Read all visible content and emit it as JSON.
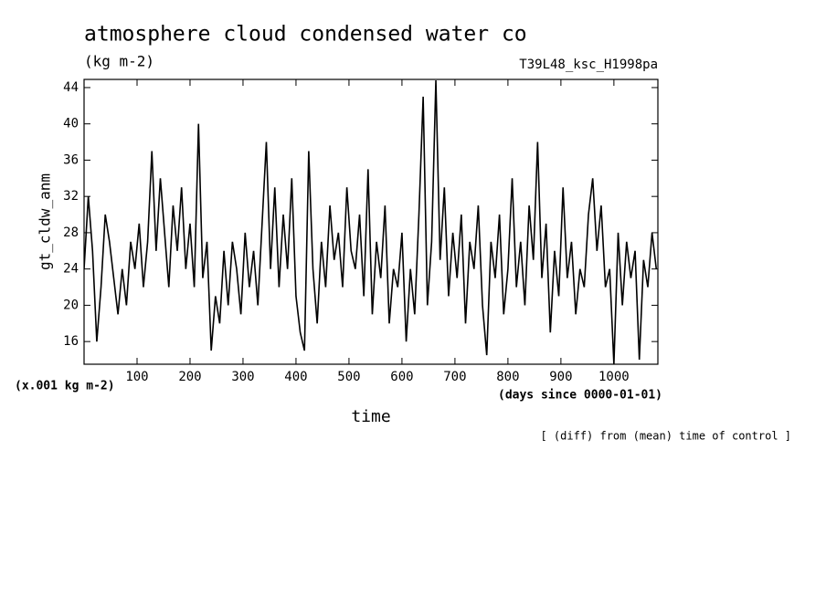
{
  "chart_data": {
    "type": "line",
    "title": "atmosphere cloud condensed water co",
    "subtitle": "(kg m-2)",
    "run_label": "T39L48_ksc_H1998pa",
    "y_label": "gt_cldw_anm",
    "y_unit_label": "(x.001 kg m-2)",
    "x_unit_label": "(days since 0000-01-01)",
    "x_label": "time",
    "note": "[ (diff) from (mean) time of control ]",
    "color": "#000000",
    "xlim": [
      0,
      1083
    ],
    "ylim": [
      13.5,
      44.9
    ],
    "xticks": [
      100,
      200,
      300,
      400,
      500,
      600,
      700,
      800,
      900,
      1000
    ],
    "yticks": [
      16,
      20,
      24,
      28,
      32,
      36,
      40,
      44
    ],
    "x": [
      0,
      8,
      16,
      24,
      32,
      40,
      48,
      56,
      64,
      72,
      80,
      88,
      96,
      104,
      112,
      120,
      128,
      136,
      144,
      152,
      160,
      168,
      176,
      184,
      192,
      200,
      208,
      216,
      224,
      232,
      240,
      248,
      256,
      264,
      272,
      280,
      288,
      296,
      304,
      312,
      320,
      328,
      336,
      344,
      352,
      360,
      368,
      376,
      384,
      392,
      400,
      408,
      416,
      424,
      432,
      440,
      448,
      456,
      464,
      472,
      480,
      488,
      496,
      504,
      512,
      520,
      528,
      536,
      544,
      552,
      560,
      568,
      576,
      584,
      592,
      600,
      608,
      616,
      624,
      632,
      640,
      648,
      656,
      664,
      672,
      680,
      688,
      696,
      704,
      712,
      720,
      728,
      736,
      744,
      752,
      760,
      768,
      776,
      784,
      792,
      800,
      808,
      816,
      824,
      832,
      840,
      848,
      856,
      864,
      872,
      880,
      888,
      896,
      904,
      912,
      920,
      928,
      936,
      944,
      952,
      960,
      968,
      976,
      984,
      992,
      1000,
      1008,
      1016,
      1024,
      1032,
      1040,
      1048,
      1056,
      1064,
      1072,
      1080
    ],
    "values": [
      24,
      32,
      26,
      16,
      22,
      30,
      27,
      23,
      19,
      24,
      20,
      27,
      24,
      29,
      22,
      27,
      37,
      26,
      34,
      28,
      22,
      31,
      26,
      33,
      24,
      29,
      22,
      40,
      23,
      27,
      15,
      21,
      18,
      26,
      20,
      27,
      24,
      19,
      28,
      22,
      26,
      20,
      29,
      38,
      24,
      33,
      22,
      30,
      24,
      34,
      21,
      17,
      15,
      37,
      24,
      18,
      27,
      22,
      31,
      25,
      28,
      22,
      33,
      26,
      24,
      30,
      21,
      35,
      19,
      27,
      23,
      31,
      18,
      24,
      22,
      28,
      16,
      24,
      19,
      30,
      43,
      20,
      27,
      44.8,
      25,
      33,
      21,
      28,
      23,
      30,
      18,
      27,
      24,
      31,
      20,
      14.5,
      27,
      23,
      30,
      19,
      24,
      34,
      22,
      27,
      20,
      31,
      25,
      38,
      23,
      29,
      17,
      26,
      21,
      33,
      23,
      27,
      19,
      24,
      22,
      30,
      34,
      26,
      31,
      22,
      24,
      13.5,
      28,
      20,
      27,
      23,
      26,
      14,
      25,
      22,
      28,
      24
    ]
  }
}
